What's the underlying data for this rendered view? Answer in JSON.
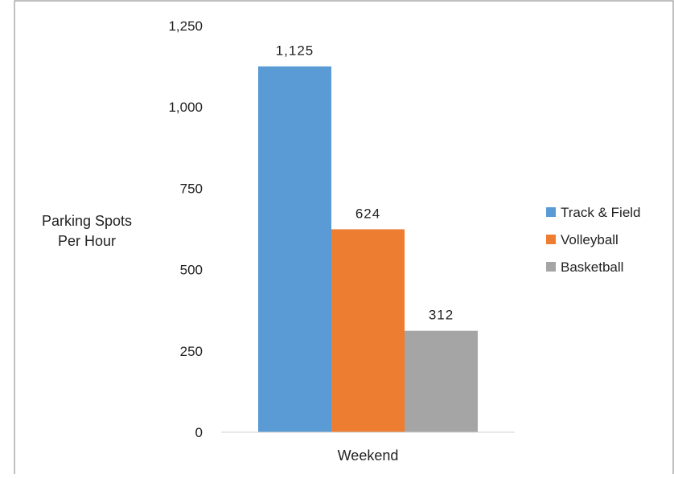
{
  "chart_data": {
    "type": "bar",
    "title": "",
    "ylabel_lines": [
      "Parking Spots",
      "Per Hour"
    ],
    "xlabel": "",
    "categories": [
      "Weekend"
    ],
    "series": [
      {
        "name": "Track & Field",
        "values": [
          1125
        ],
        "label": "1,125",
        "color": "#5B9BD5"
      },
      {
        "name": "Volleyball",
        "values": [
          624
        ],
        "label": "624",
        "color": "#ED7D31"
      },
      {
        "name": "Basketball",
        "values": [
          312
        ],
        "label": "312",
        "color": "#A5A5A5"
      }
    ],
    "ylim": [
      0,
      1250
    ],
    "yticks": [
      {
        "value": 0,
        "label": "0"
      },
      {
        "value": 250,
        "label": "250"
      },
      {
        "value": 500,
        "label": "500"
      },
      {
        "value": 750,
        "label": "750"
      },
      {
        "value": 1000,
        "label": "1,000"
      },
      {
        "value": 1250,
        "label": "1,250"
      }
    ],
    "grid": false,
    "legend_position": "right"
  }
}
